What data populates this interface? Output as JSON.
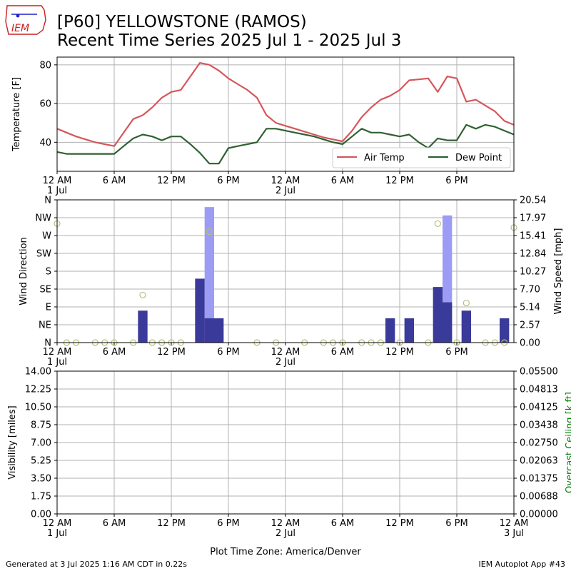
{
  "header": {
    "logo_text": "IEM",
    "title_line1": "[P60] YELLOWSTONE (RAMOS)",
    "title_line2": "Recent Time Series 2025 Jul 1 - 2025 Jul 3"
  },
  "footer": {
    "generated": "Generated at 3 Jul 2025 1:16 AM CDT in 0.22s",
    "app": "IEM Autoplot App #43",
    "xlabel": "Plot Time Zone: America/Denver"
  },
  "colors": {
    "air_temp": "#d6565b",
    "dew_point": "#2e6131",
    "gust_bar": "#9c9cf5",
    "speed_bar": "#3a3a9a",
    "direction_marker": "#b7bf7a",
    "grid": "#b0b0b0",
    "ceiling_label": "#008000"
  },
  "x_ticks": [
    {
      "hour": 0,
      "label": "12 AM",
      "sub": "1 Jul"
    },
    {
      "hour": 6,
      "label": "6 AM",
      "sub": ""
    },
    {
      "hour": 12,
      "label": "12 PM",
      "sub": ""
    },
    {
      "hour": 18,
      "label": "6 PM",
      "sub": ""
    },
    {
      "hour": 24,
      "label": "12 AM",
      "sub": "2 Jul"
    },
    {
      "hour": 30,
      "label": "6 AM",
      "sub": ""
    },
    {
      "hour": 36,
      "label": "12 PM",
      "sub": ""
    },
    {
      "hour": 42,
      "label": "6 PM",
      "sub": ""
    }
  ],
  "x_ticks_bottom_extra": {
    "hour": 48,
    "label": "12 AM",
    "sub": "3 Jul"
  },
  "chart_data": [
    {
      "type": "line",
      "ylabel": "Temperature [F]",
      "xlim_hours": [
        0,
        48
      ],
      "ylim": [
        25,
        84
      ],
      "yticks": [
        40,
        60,
        80
      ],
      "grid": true,
      "legend_position": "lower-right",
      "series": [
        {
          "name": "Air Temp",
          "x": [
            0,
            1,
            2,
            3,
            4,
            5,
            6,
            7,
            8,
            9,
            10,
            11,
            12,
            13,
            14,
            15,
            16,
            17,
            18,
            19,
            20,
            21,
            22,
            23,
            24,
            25,
            26,
            27,
            28,
            29,
            30,
            31,
            32,
            33,
            34,
            35,
            36,
            37,
            38,
            39,
            40,
            41,
            42,
            43,
            44,
            45,
            46,
            47,
            48
          ],
          "y": [
            47,
            45,
            43,
            41.5,
            40,
            39,
            38,
            45,
            52,
            54,
            58,
            63,
            66,
            67,
            74,
            81,
            80,
            77,
            73,
            70,
            67,
            63,
            54,
            50,
            48.5,
            47,
            45.5,
            44,
            42.5,
            41.5,
            40.5,
            46,
            53,
            58,
            62,
            64,
            67,
            72,
            72.5,
            73,
            66,
            74,
            73,
            61,
            62,
            59,
            56,
            51,
            49
          ]
        },
        {
          "name": "Dew Point",
          "x": [
            0,
            1,
            2,
            3,
            4,
            5,
            6,
            7,
            8,
            9,
            10,
            11,
            12,
            13,
            14,
            15,
            16,
            17,
            18,
            19,
            20,
            21,
            22,
            23,
            24,
            25,
            26,
            27,
            28,
            29,
            30,
            31,
            32,
            33,
            34,
            35,
            36,
            37,
            38,
            39,
            40,
            41,
            42,
            43,
            44,
            45,
            46,
            47,
            48
          ],
          "y": [
            35,
            34,
            34,
            34,
            34,
            34,
            34,
            38,
            42,
            44,
            43,
            41,
            43,
            43,
            39,
            34.5,
            29,
            29,
            37,
            38,
            39,
            40,
            47,
            47,
            46,
            45,
            44,
            43,
            41.5,
            40,
            39,
            43,
            47,
            45,
            45,
            44,
            43,
            44,
            40,
            37,
            42,
            41,
            41,
            49,
            47,
            49,
            48,
            46,
            44
          ]
        }
      ]
    },
    {
      "type": "bar",
      "ylabel_left": "Wind Direction",
      "ylabel_right": "Wind Speed [mph]",
      "direction_ticks": [
        "N",
        "NE",
        "E",
        "SE",
        "S",
        "SW",
        "W",
        "NW",
        "N"
      ],
      "speed_ylim": [
        0,
        20.54
      ],
      "speed_ticks": [
        "0.00",
        "2.57",
        "5.14",
        "7.70",
        "10.27",
        "12.84",
        "15.41",
        "17.97",
        "20.54"
      ],
      "series": [
        {
          "name": "Gust",
          "x": [
            16,
            41
          ],
          "values": [
            19.5,
            18.3
          ]
        },
        {
          "name": "Wind Speed",
          "x": [
            9,
            15,
            16,
            17,
            35,
            37,
            40,
            41,
            43,
            47
          ],
          "values": [
            4.6,
            9.2,
            3.5,
            3.5,
            3.5,
            3.5,
            8.0,
            5.8,
            4.6,
            3.5
          ]
        },
        {
          "name": "Wind Direction",
          "x": [
            0,
            1,
            2,
            4,
            5,
            6,
            8,
            9,
            10,
            11,
            12,
            13,
            16,
            21,
            23,
            26,
            28,
            29,
            30,
            32,
            33,
            34,
            36,
            39,
            40,
            42,
            43,
            45,
            46,
            47,
            48
          ],
          "values": [
            300,
            0,
            0,
            0,
            0,
            0,
            0,
            120,
            0,
            0,
            0,
            0,
            280,
            0,
            0,
            0,
            0,
            0,
            0,
            0,
            0,
            0,
            0,
            0,
            300,
            0,
            100,
            0,
            0,
            0,
            290
          ]
        }
      ]
    },
    {
      "type": "line",
      "ylabel_left": "Visibility [miles]",
      "ylabel_right": "Overcast Ceiling [k ft]",
      "ylim": [
        0,
        14
      ],
      "yticks": [
        "0.00",
        "1.75",
        "3.50",
        "5.25",
        "7.00",
        "8.75",
        "10.50",
        "12.25",
        "14.00"
      ],
      "y2lim": [
        0,
        0.055
      ],
      "y2ticks": [
        "0.00000",
        "0.00688",
        "0.01375",
        "0.02063",
        "0.02750",
        "0.03438",
        "0.04125",
        "0.04813",
        "0.05500"
      ],
      "series": []
    }
  ]
}
